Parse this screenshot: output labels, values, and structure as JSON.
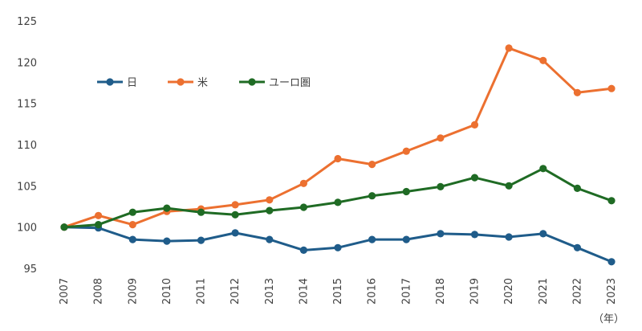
{
  "chart_data": {
    "type": "line",
    "x": [
      "2007",
      "2008",
      "2009",
      "2010",
      "2011",
      "2012",
      "2013",
      "2014",
      "2015",
      "2016",
      "2017",
      "2018",
      "2019",
      "2020",
      "2021",
      "2022",
      "2023"
    ],
    "ylim": [
      95,
      125
    ],
    "yticks": [
      95,
      100,
      105,
      110,
      115,
      120,
      125
    ],
    "grid": false,
    "legend": "top-left",
    "x_unit": "（年）",
    "series": [
      {
        "name": "日",
        "color": "#1f5c8a",
        "values": [
          100.0,
          99.9,
          98.5,
          98.3,
          98.4,
          99.3,
          98.5,
          97.2,
          97.5,
          98.5,
          98.5,
          99.2,
          99.1,
          98.8,
          99.2,
          97.5,
          95.8
        ]
      },
      {
        "name": "米",
        "color": "#ec7030",
        "values": [
          100.0,
          101.4,
          100.3,
          101.9,
          102.2,
          102.7,
          103.3,
          105.3,
          108.3,
          107.6,
          109.2,
          110.8,
          112.4,
          121.7,
          120.2,
          116.3,
          116.8
        ]
      },
      {
        "name": "ユーロ圏",
        "color": "#1f6b24",
        "values": [
          100.0,
          100.3,
          101.8,
          102.3,
          101.8,
          101.5,
          102.0,
          102.4,
          103.0,
          103.8,
          104.3,
          104.9,
          106.0,
          105.0,
          107.1,
          104.7,
          103.2
        ]
      }
    ]
  }
}
